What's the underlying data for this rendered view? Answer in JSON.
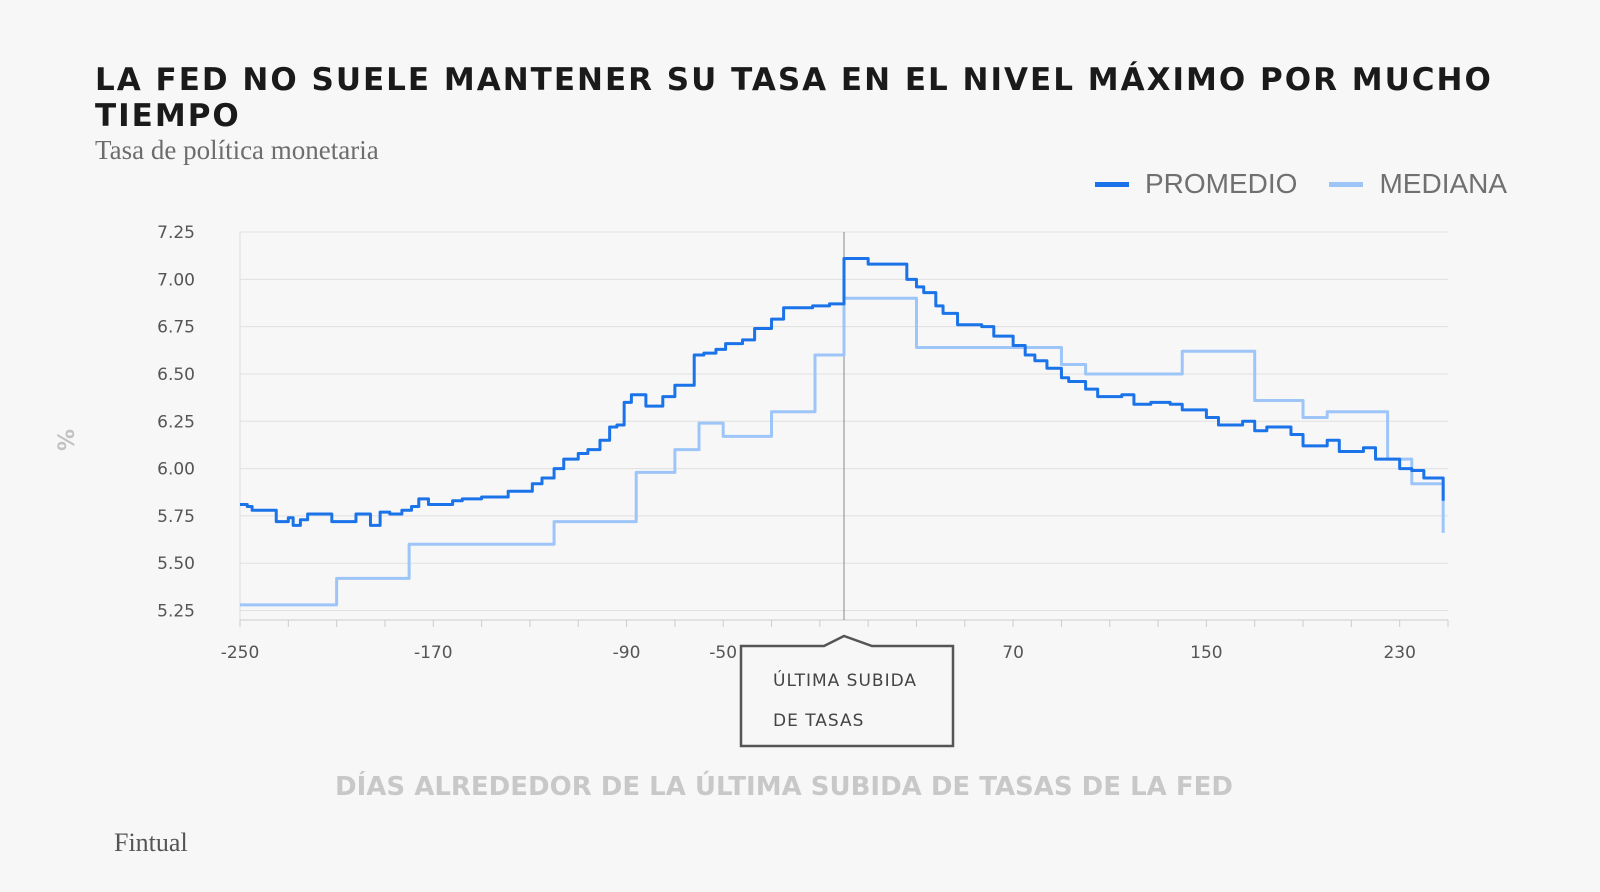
{
  "header": {
    "title": "LA FED NO SUELE MANTENER SU TASA EN EL NIVEL MÁXIMO POR MUCHO TIEMPO",
    "subtitle": "Tasa de política monetaria"
  },
  "footer": {
    "brand": "Fintual"
  },
  "chart_data": {
    "type": "line",
    "title": "LA FED NO SUELE MANTENER SU TASA EN EL NIVEL MÁXIMO POR MUCHO TIEMPO",
    "subtitle": "Tasa de política monetaria",
    "xlabel": "DÍAS ALREDEDOR DE LA ÚLTIMA SUBIDA DE TASAS DE LA FED",
    "ylabel": "%",
    "xlim": [
      -250,
      250
    ],
    "ylim": [
      5.2,
      7.25
    ],
    "y_ticks": [
      "7.25",
      "7.00",
      "6.75",
      "6.50",
      "6.25",
      "6.00",
      "5.75",
      "5.50",
      "5.25"
    ],
    "y_tick_values": [
      7.25,
      7.0,
      6.75,
      6.5,
      6.25,
      6.0,
      5.75,
      5.5,
      5.25
    ],
    "x_tick_labels": [
      {
        "value": -250,
        "label": "-250"
      },
      {
        "value": -170,
        "label": "-170"
      },
      {
        "value": -90,
        "label": "-90"
      },
      {
        "value": -50,
        "label": "-50"
      },
      {
        "value": 70,
        "label": "70"
      },
      {
        "value": 150,
        "label": "150"
      },
      {
        "value": 230,
        "label": "230"
      }
    ],
    "grid": true,
    "legend_position": "top-right",
    "annotation": {
      "x": 0,
      "lines": [
        "ÚLTIMA SUBIDA",
        "DE TASAS"
      ]
    },
    "series": [
      {
        "name": "PROMEDIO",
        "color": "#1a73e8",
        "x": [
          -250,
          -247,
          -245,
          -237,
          -235,
          -230,
          -228,
          -225,
          -222,
          -218,
          -212,
          -207,
          -202,
          -196,
          -192,
          -188,
          -183,
          -179,
          -176,
          -172,
          -167,
          -162,
          -158,
          -150,
          -139,
          -129,
          -125,
          -120,
          -116,
          -110,
          -106,
          -101,
          -97,
          -94,
          -91,
          -88,
          -82,
          -75,
          -70,
          -62,
          -58,
          -53,
          -49,
          -42,
          -37,
          -30,
          -25,
          -18,
          -13,
          -6,
          0,
          5,
          10,
          15,
          26,
          30,
          33,
          38,
          41,
          47,
          57,
          62,
          70,
          75,
          79,
          84,
          90,
          93,
          100,
          105,
          115,
          120,
          127,
          130,
          135,
          140,
          150,
          155,
          165,
          170,
          175,
          185,
          190,
          200,
          205,
          215,
          220,
          230,
          235,
          240,
          248
        ],
        "values": [
          5.81,
          5.8,
          5.78,
          5.78,
          5.72,
          5.74,
          5.7,
          5.73,
          5.76,
          5.76,
          5.72,
          5.72,
          5.76,
          5.7,
          5.77,
          5.76,
          5.78,
          5.8,
          5.84,
          5.81,
          5.81,
          5.83,
          5.84,
          5.85,
          5.88,
          5.92,
          5.95,
          6.0,
          6.05,
          6.08,
          6.1,
          6.15,
          6.22,
          6.23,
          6.35,
          6.39,
          6.33,
          6.38,
          6.44,
          6.6,
          6.61,
          6.63,
          6.66,
          6.68,
          6.74,
          6.79,
          6.85,
          6.85,
          6.86,
          6.87,
          7.11,
          7.11,
          7.08,
          7.08,
          7.0,
          6.96,
          6.93,
          6.86,
          6.82,
          6.76,
          6.75,
          6.7,
          6.65,
          6.6,
          6.57,
          6.53,
          6.48,
          6.46,
          6.42,
          6.38,
          6.39,
          6.34,
          6.35,
          6.35,
          6.34,
          6.31,
          6.27,
          6.23,
          6.25,
          6.2,
          6.22,
          6.18,
          6.12,
          6.15,
          6.09,
          6.11,
          6.05,
          6.0,
          5.99,
          5.95,
          5.83
        ]
      },
      {
        "name": "MEDIANA",
        "color": "#9ec5f8",
        "x": [
          -250,
          -230,
          -210,
          -185,
          -180,
          -150,
          -130,
          -120,
          -100,
          -86,
          -70,
          -60,
          -50,
          -40,
          -30,
          -20,
          -12,
          0,
          10,
          20,
          30,
          50,
          80,
          90,
          100,
          110,
          120,
          140,
          160,
          170,
          180,
          190,
          200,
          210,
          225,
          235,
          245,
          248
        ],
        "values": [
          5.28,
          5.28,
          5.42,
          5.42,
          5.6,
          5.6,
          5.6,
          5.72,
          5.72,
          5.98,
          6.1,
          6.24,
          6.17,
          6.17,
          6.3,
          6.3,
          6.6,
          6.9,
          6.9,
          6.9,
          6.64,
          6.64,
          6.64,
          6.55,
          6.5,
          6.5,
          6.5,
          6.62,
          6.62,
          6.36,
          6.36,
          6.27,
          6.3,
          6.3,
          6.05,
          5.92,
          5.92,
          5.66
        ]
      }
    ]
  }
}
